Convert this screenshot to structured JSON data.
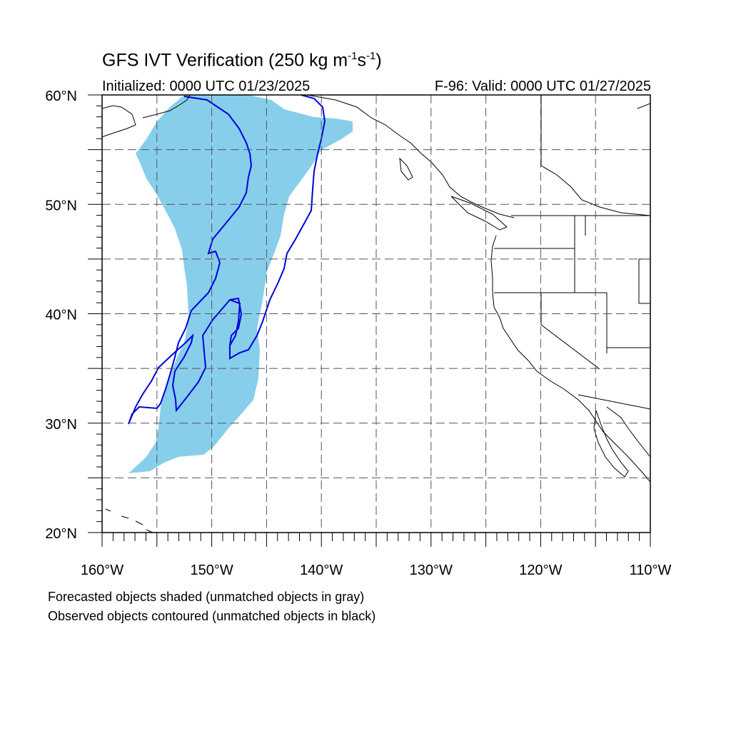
{
  "title": {
    "main": "GFS IVT Verification (250 kg m",
    "sup1": "-1",
    "mid": "s",
    "sup2": "-1",
    "end": ")"
  },
  "initialized": "Initialized: 0000 UTC 01/23/2025",
  "valid": "F-96: Valid: 0000 UTC 01/27/2025",
  "lat_labels": [
    "60°N",
    "50°N",
    "40°N",
    "30°N",
    "20°N"
  ],
  "lon_labels": [
    "160°W",
    "150°W",
    "140°W",
    "130°W",
    "120°W",
    "110°W"
  ],
  "notes": {
    "forecast": "Forecasted objects shaded (unmatched objects in gray)",
    "observed": "Observed objects contoured (unmatched objects in black)"
  },
  "colors": {
    "forecast_fill": "#87ceeb",
    "observed_contour": "#0000dd",
    "coast": "#000000",
    "grid": "#555555"
  },
  "map_extent": {
    "lon_min": -160,
    "lon_max": -110,
    "lat_min": 20,
    "lat_max": 60
  }
}
